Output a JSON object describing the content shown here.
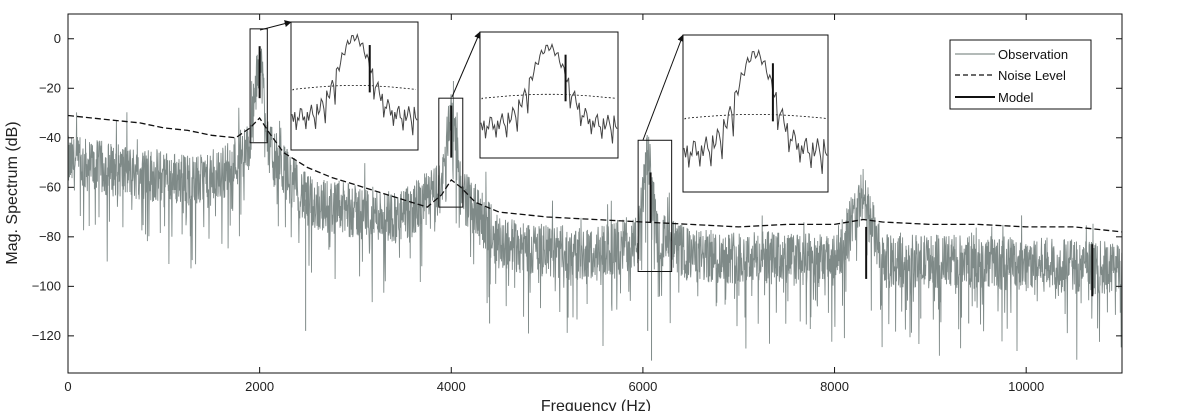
{
  "chart_data": {
    "type": "line",
    "xlabel": "Frequency (Hz)",
    "ylabel": "Mag. Spectrum (dB)",
    "xlim": [
      0,
      11000
    ],
    "ylim": [
      -135,
      10
    ],
    "x_ticks": [
      0,
      2000,
      4000,
      6000,
      8000,
      10000
    ],
    "y_ticks": [
      0,
      -20,
      -40,
      -60,
      -80,
      -100,
      -120
    ],
    "grid": false,
    "legend": {
      "placement": "top-right",
      "entries": [
        {
          "label": "Observation",
          "style": "solid-gray"
        },
        {
          "label": "Noise Level",
          "style": "dashed-black"
        },
        {
          "label": "Model",
          "style": "solid-black"
        }
      ]
    },
    "colors": {
      "observation": "#7f8a88",
      "noise": "#111111",
      "model": "#111111"
    },
    "series": [
      {
        "name": "Noise Level",
        "x": [
          0,
          250,
          500,
          750,
          1000,
          1250,
          1500,
          1750,
          1900,
          2000,
          2100,
          2250,
          2500,
          2750,
          3000,
          3250,
          3500,
          3750,
          3900,
          4000,
          4100,
          4250,
          4500,
          4750,
          5000,
          5500,
          6000,
          6500,
          7000,
          7500,
          8000,
          8300,
          8500,
          9000,
          9500,
          10000,
          10500,
          11000
        ],
        "y": [
          -31,
          -32,
          -33,
          -34,
          -36,
          -37,
          -39,
          -40,
          -36,
          -32,
          -38,
          -46,
          -52,
          -56,
          -59,
          -62,
          -65,
          -68,
          -63,
          -57,
          -60,
          -66,
          -70,
          -71,
          -72,
          -73,
          -74,
          -75,
          -76,
          -75,
          -75,
          -73,
          -74,
          -75,
          -75,
          -76,
          -76,
          -78
        ]
      },
      {
        "name": "Observation",
        "description": "dense noisy spectrum",
        "x": [
          0,
          500,
          1000,
          1500,
          1900,
          2000,
          2100,
          2500,
          3000,
          3500,
          3900,
          4000,
          4100,
          4500,
          5000,
          5500,
          5950,
          6050,
          6150,
          6500,
          7000,
          7500,
          8000,
          8300,
          8500,
          9000,
          9500,
          10000,
          10500,
          11000
        ],
        "y": [
          -50,
          -53,
          -56,
          -58,
          -44,
          -5,
          -45,
          -66,
          -70,
          -72,
          -60,
          -26,
          -62,
          -82,
          -86,
          -87,
          -82,
          -45,
          -80,
          -88,
          -88,
          -89,
          -90,
          -63,
          -90,
          -90,
          -90,
          -91,
          -92,
          -93
        ]
      },
      {
        "name": "Model",
        "segments": [
          {
            "x": 2000,
            "y_top": -3,
            "y_bottom": -24
          },
          {
            "x": 4000,
            "y_top": -27,
            "y_bottom": -48
          },
          {
            "x": 6080,
            "y_top": -54,
            "y_bottom": -74
          },
          {
            "x": 8330,
            "y_top": -76,
            "y_bottom": -97
          },
          {
            "x": 10690,
            "y_top": -83,
            "y_bottom": -104
          }
        ]
      }
    ],
    "annotations": [
      {
        "type": "zoom-box",
        "x_range": [
          1900,
          2080
        ],
        "y_range": [
          -42,
          4
        ]
      },
      {
        "type": "zoom-box",
        "x_range": [
          3870,
          4120
        ],
        "y_range": [
          -68,
          -24
        ]
      },
      {
        "type": "zoom-box",
        "x_range": [
          5950,
          6300
        ],
        "y_range": [
          -94,
          -41
        ]
      }
    ]
  }
}
